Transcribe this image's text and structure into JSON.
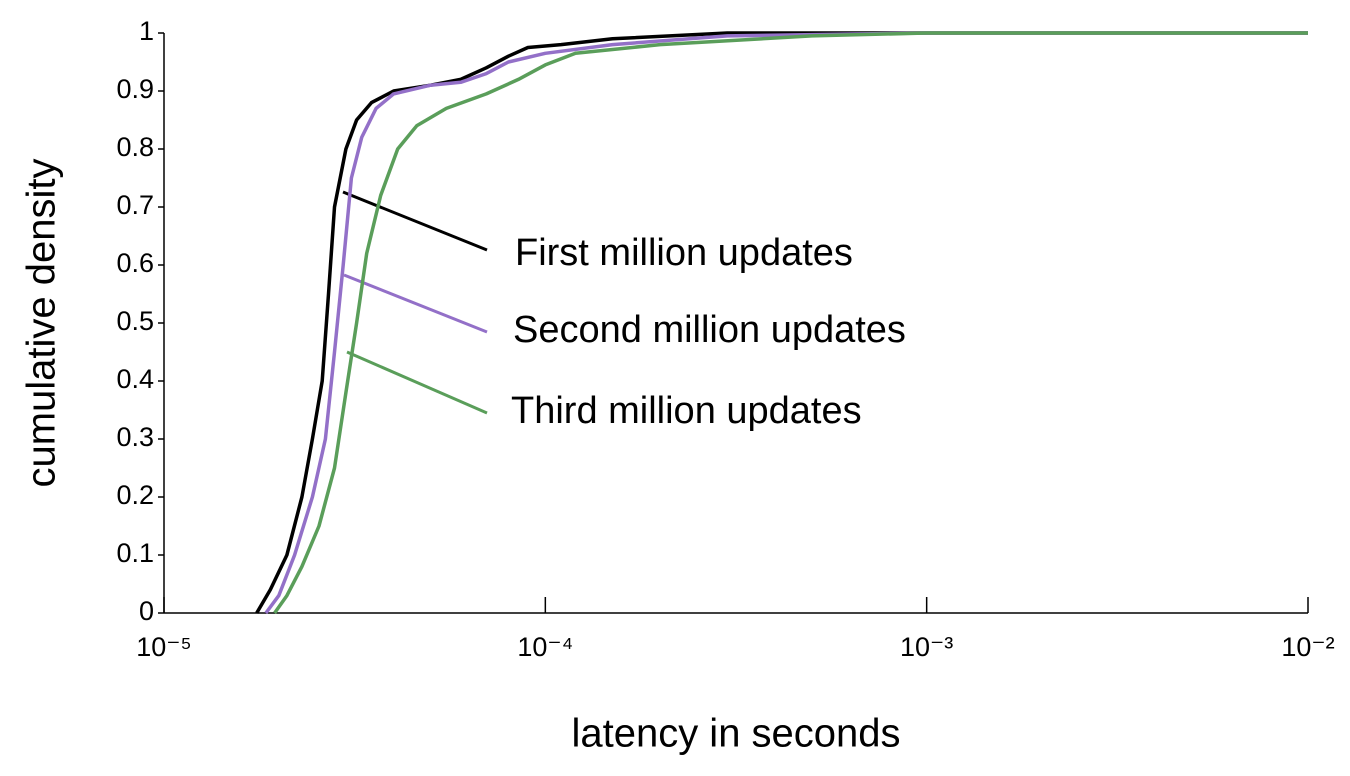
{
  "chart_data": {
    "type": "line",
    "xlabel": "latency in seconds",
    "ylabel": "cumulative density",
    "xscale": "log",
    "xlim": [
      1e-05,
      0.01
    ],
    "ylim": [
      0,
      1
    ],
    "xticks": [
      {
        "value": 1e-05,
        "label": "10⁻⁵"
      },
      {
        "value": 0.0001,
        "label": "10⁻⁴"
      },
      {
        "value": 0.001,
        "label": "10⁻³"
      },
      {
        "value": 0.01,
        "label": "10⁻²"
      }
    ],
    "yticks": [
      0,
      0.1,
      0.2,
      0.3,
      0.4,
      0.5,
      0.6,
      0.7,
      0.8,
      0.9,
      1
    ],
    "grid": false,
    "series": [
      {
        "name": "First million updates",
        "color": "#000000",
        "x": [
          1.75e-05,
          1.9e-05,
          2.1e-05,
          2.3e-05,
          2.45e-05,
          2.6e-05,
          2.7e-05,
          2.8e-05,
          3e-05,
          3.2e-05,
          3.5e-05,
          4e-05,
          5e-05,
          6e-05,
          7e-05,
          8e-05,
          9e-05,
          0.00011,
          0.00015,
          0.0003,
          0.001,
          0.01
        ],
        "values": [
          0,
          0.04,
          0.1,
          0.2,
          0.3,
          0.4,
          0.55,
          0.7,
          0.8,
          0.85,
          0.88,
          0.9,
          0.91,
          0.92,
          0.94,
          0.96,
          0.975,
          0.98,
          0.99,
          1,
          1,
          1
        ]
      },
      {
        "name": "Second million updates",
        "color": "#9370c8",
        "x": [
          1.85e-05,
          2e-05,
          2.2e-05,
          2.45e-05,
          2.65e-05,
          2.8e-05,
          2.95e-05,
          3.1e-05,
          3.3e-05,
          3.6e-05,
          4e-05,
          5e-05,
          6e-05,
          7e-05,
          8e-05,
          0.0001,
          0.00015,
          0.0003,
          0.001,
          0.01
        ],
        "values": [
          0,
          0.03,
          0.1,
          0.2,
          0.3,
          0.45,
          0.6,
          0.75,
          0.82,
          0.87,
          0.895,
          0.91,
          0.915,
          0.93,
          0.95,
          0.965,
          0.98,
          0.995,
          1,
          1
        ]
      },
      {
        "name": "Third million updates",
        "color": "#5a9e5a",
        "x": [
          1.95e-05,
          2.1e-05,
          2.3e-05,
          2.55e-05,
          2.8e-05,
          3e-05,
          3.2e-05,
          3.4e-05,
          3.7e-05,
          4.1e-05,
          4.6e-05,
          5.5e-05,
          7e-05,
          8.5e-05,
          0.0001,
          0.00012,
          0.0002,
          0.0005,
          0.001,
          0.01
        ],
        "values": [
          0,
          0.03,
          0.08,
          0.15,
          0.25,
          0.38,
          0.5,
          0.62,
          0.72,
          0.8,
          0.84,
          0.87,
          0.895,
          0.92,
          0.945,
          0.965,
          0.98,
          0.995,
          1,
          1
        ]
      }
    ]
  }
}
